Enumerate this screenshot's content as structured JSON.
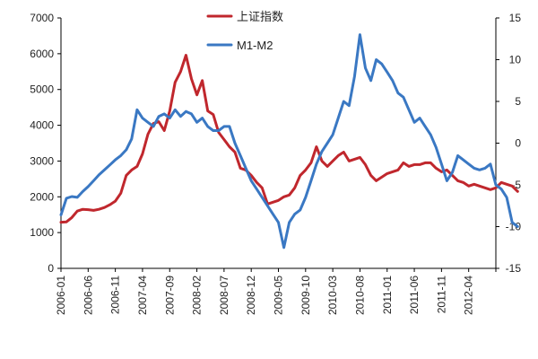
{
  "chart_data": {
    "type": "line",
    "title": "",
    "xlabel": "",
    "ylabel": "",
    "y2label": "",
    "grid": false,
    "legend_position": "top-center",
    "x_tick_labels": [
      "2006-01",
      "2006-06",
      "2006-11",
      "2007-04",
      "2007-09",
      "2008-02",
      "2008-07",
      "2008-12",
      "2009-05",
      "2009-10",
      "2010-03",
      "2010-08",
      "2011-01",
      "2011-06",
      "2011-11",
      "2012-04"
    ],
    "x_range": [
      0,
      80
    ],
    "ylim_left": [
      0,
      7000
    ],
    "yticks_left": [
      "0",
      "1000",
      "2000",
      "3000",
      "4000",
      "5000",
      "6000",
      "7000"
    ],
    "ylim_right": [
      -15,
      15
    ],
    "yticks_right": [
      "-15",
      "-10",
      "-5",
      "0",
      "5",
      "10",
      "15"
    ],
    "series": [
      {
        "name": "上证指数",
        "axis": "left",
        "color": "#C0272D",
        "values": [
          1290,
          1300,
          1420,
          1600,
          1650,
          1640,
          1620,
          1650,
          1700,
          1780,
          1880,
          2100,
          2600,
          2750,
          2850,
          3200,
          3750,
          4050,
          4100,
          3850,
          4400,
          5200,
          5500,
          5960,
          5300,
          4850,
          5250,
          4400,
          4300,
          3800,
          3600,
          3400,
          3250,
          2800,
          2750,
          2600,
          2400,
          2250,
          1800,
          1850,
          1900,
          2000,
          2050,
          2250,
          2600,
          2750,
          2950,
          3400,
          3000,
          2850,
          3000,
          3150,
          3250,
          3000,
          3050,
          3100,
          2900,
          2600,
          2450,
          2550,
          2650,
          2700,
          2750,
          2950,
          2850,
          2900,
          2900,
          2950,
          2950,
          2800,
          2700,
          2750,
          2600,
          2450,
          2400,
          2300,
          2350,
          2300,
          2250,
          2200,
          2250,
          2400,
          2350,
          2300,
          2150
        ]
      },
      {
        "name": "M1-M2",
        "axis": "right",
        "color": "#3A78C3",
        "values": [
          -8.6,
          -6.6,
          -6.4,
          -6.5,
          -5.8,
          -5.2,
          -4.5,
          -3.8,
          -3.2,
          -2.6,
          -2.0,
          -1.5,
          -0.8,
          0.5,
          4.0,
          3.0,
          2.5,
          2.0,
          3.2,
          3.5,
          3.0,
          4.0,
          3.2,
          3.8,
          3.5,
          2.5,
          3.0,
          2.0,
          1.5,
          1.5,
          2.0,
          2.0,
          0.0,
          -1.5,
          -3.0,
          -4.5,
          -5.5,
          -6.5,
          -7.5,
          -8.5,
          -9.5,
          -12.5,
          -9.5,
          -8.5,
          -8.0,
          -6.5,
          -4.5,
          -2.5,
          -1.0,
          0.0,
          1.0,
          3.0,
          5.0,
          4.5,
          8.0,
          13.0,
          9.0,
          7.5,
          10.0,
          9.5,
          8.5,
          7.5,
          6.0,
          5.5,
          4.0,
          2.5,
          3.0,
          2.0,
          1.0,
          -0.5,
          -2.5,
          -4.5,
          -3.5,
          -1.5,
          -2.0,
          -2.5,
          -3.0,
          -3.2,
          -3.0,
          -2.5,
          -5.0,
          -5.5,
          -6.5,
          -9.5,
          -10.0
        ]
      }
    ]
  }
}
